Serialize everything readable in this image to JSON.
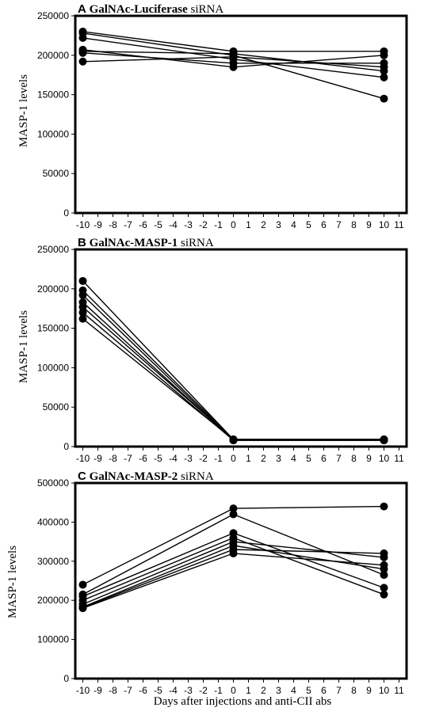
{
  "figure": {
    "xlabel": "Days after injections and anti-CII abs"
  },
  "chart_data": [
    {
      "type": "line",
      "panel_letter": "A",
      "title": "GalNAc-Luciferase",
      "title_suffix": "siRNA",
      "ylabel": "MASP-1 levels",
      "xlabel": "",
      "x_ticks": [
        -10,
        -9,
        -8,
        -7,
        -6,
        -5,
        -4,
        -3,
        -2,
        -1,
        0,
        1,
        2,
        3,
        4,
        5,
        6,
        7,
        8,
        9,
        10,
        11
      ],
      "y_ticks": [
        0,
        50000,
        100000,
        150000,
        200000,
        250000
      ],
      "xlim": [
        -10.5,
        11.5
      ],
      "ylim": [
        0,
        250000
      ],
      "marker": "circle",
      "line_color": "#000000",
      "series": [
        {
          "x": [
            -10,
            0,
            10
          ],
          "y": [
            230000,
            205000,
            205000
          ]
        },
        {
          "x": [
            -10,
            0,
            10
          ],
          "y": [
            228000,
            200000,
            145000
          ]
        },
        {
          "x": [
            -10,
            0,
            10
          ],
          "y": [
            222000,
            195000,
            172000
          ]
        },
        {
          "x": [
            -10,
            0,
            10
          ],
          "y": [
            207000,
            185000,
            200000
          ]
        },
        {
          "x": [
            -10,
            0,
            10
          ],
          "y": [
            205000,
            202000,
            180000
          ]
        },
        {
          "x": [
            -10,
            0,
            10
          ],
          "y": [
            203000,
            190000,
            190000
          ]
        },
        {
          "x": [
            -10,
            0,
            10
          ],
          "y": [
            192000,
            198000,
            185000
          ]
        }
      ]
    },
    {
      "type": "line",
      "panel_letter": "B",
      "title": "GalNAc-MASP-1",
      "title_suffix": "siRNA",
      "ylabel": "MASP-1 levels",
      "xlabel": "",
      "x_ticks": [
        -10,
        -9,
        -8,
        -7,
        -6,
        -5,
        -4,
        -3,
        -2,
        -1,
        0,
        1,
        2,
        3,
        4,
        5,
        6,
        7,
        8,
        9,
        10,
        11
      ],
      "y_ticks": [
        0,
        50000,
        100000,
        150000,
        200000,
        250000
      ],
      "xlim": [
        -10.5,
        11.5
      ],
      "ylim": [
        0,
        250000
      ],
      "marker": "circle",
      "line_color": "#000000",
      "series": [
        {
          "x": [
            -10,
            0,
            10
          ],
          "y": [
            210000,
            9000,
            9000
          ]
        },
        {
          "x": [
            -10,
            0,
            10
          ],
          "y": [
            198000,
            9000,
            9000
          ]
        },
        {
          "x": [
            -10,
            0,
            10
          ],
          "y": [
            192000,
            8000,
            8000
          ]
        },
        {
          "x": [
            -10,
            0,
            10
          ],
          "y": [
            183000,
            8000,
            8000
          ]
        },
        {
          "x": [
            -10,
            0,
            10
          ],
          "y": [
            177000,
            9000,
            9000
          ]
        },
        {
          "x": [
            -10,
            0,
            10
          ],
          "y": [
            170000,
            8000,
            8000
          ]
        },
        {
          "x": [
            -10,
            0,
            10
          ],
          "y": [
            162000,
            9000,
            9000
          ]
        }
      ]
    },
    {
      "type": "line",
      "panel_letter": "C",
      "title": "GalNAc-MASP-2",
      "title_suffix": "siRNA",
      "ylabel": "MASP-1 levels",
      "xlabel": "Days after injections and anti-CII abs",
      "x_ticks": [
        -10,
        -9,
        -8,
        -7,
        -6,
        -5,
        -4,
        -3,
        -2,
        -1,
        0,
        1,
        2,
        3,
        4,
        5,
        6,
        7,
        8,
        9,
        10,
        11
      ],
      "y_ticks": [
        0,
        100000,
        200000,
        300000,
        400000,
        500000
      ],
      "xlim": [
        -10.5,
        11.5
      ],
      "ylim": [
        0,
        500000
      ],
      "marker": "circle",
      "line_color": "#000000",
      "series": [
        {
          "x": [
            -10,
            0,
            10
          ],
          "y": [
            240000,
            435000,
            440000
          ]
        },
        {
          "x": [
            -10,
            0,
            10
          ],
          "y": [
            215000,
            420000,
            265000
          ]
        },
        {
          "x": [
            -10,
            0,
            10
          ],
          "y": [
            210000,
            372000,
            232000
          ]
        },
        {
          "x": [
            -10,
            0,
            10
          ],
          "y": [
            200000,
            360000,
            215000
          ]
        },
        {
          "x": [
            -10,
            0,
            10
          ],
          "y": [
            190000,
            350000,
            310000
          ]
        },
        {
          "x": [
            -10,
            0,
            10
          ],
          "y": [
            183000,
            340000,
            280000
          ]
        },
        {
          "x": [
            -10,
            0,
            10
          ],
          "y": [
            182000,
            330000,
            320000
          ]
        },
        {
          "x": [
            -10,
            0,
            10
          ],
          "y": [
            180000,
            320000,
            290000
          ]
        }
      ]
    }
  ]
}
